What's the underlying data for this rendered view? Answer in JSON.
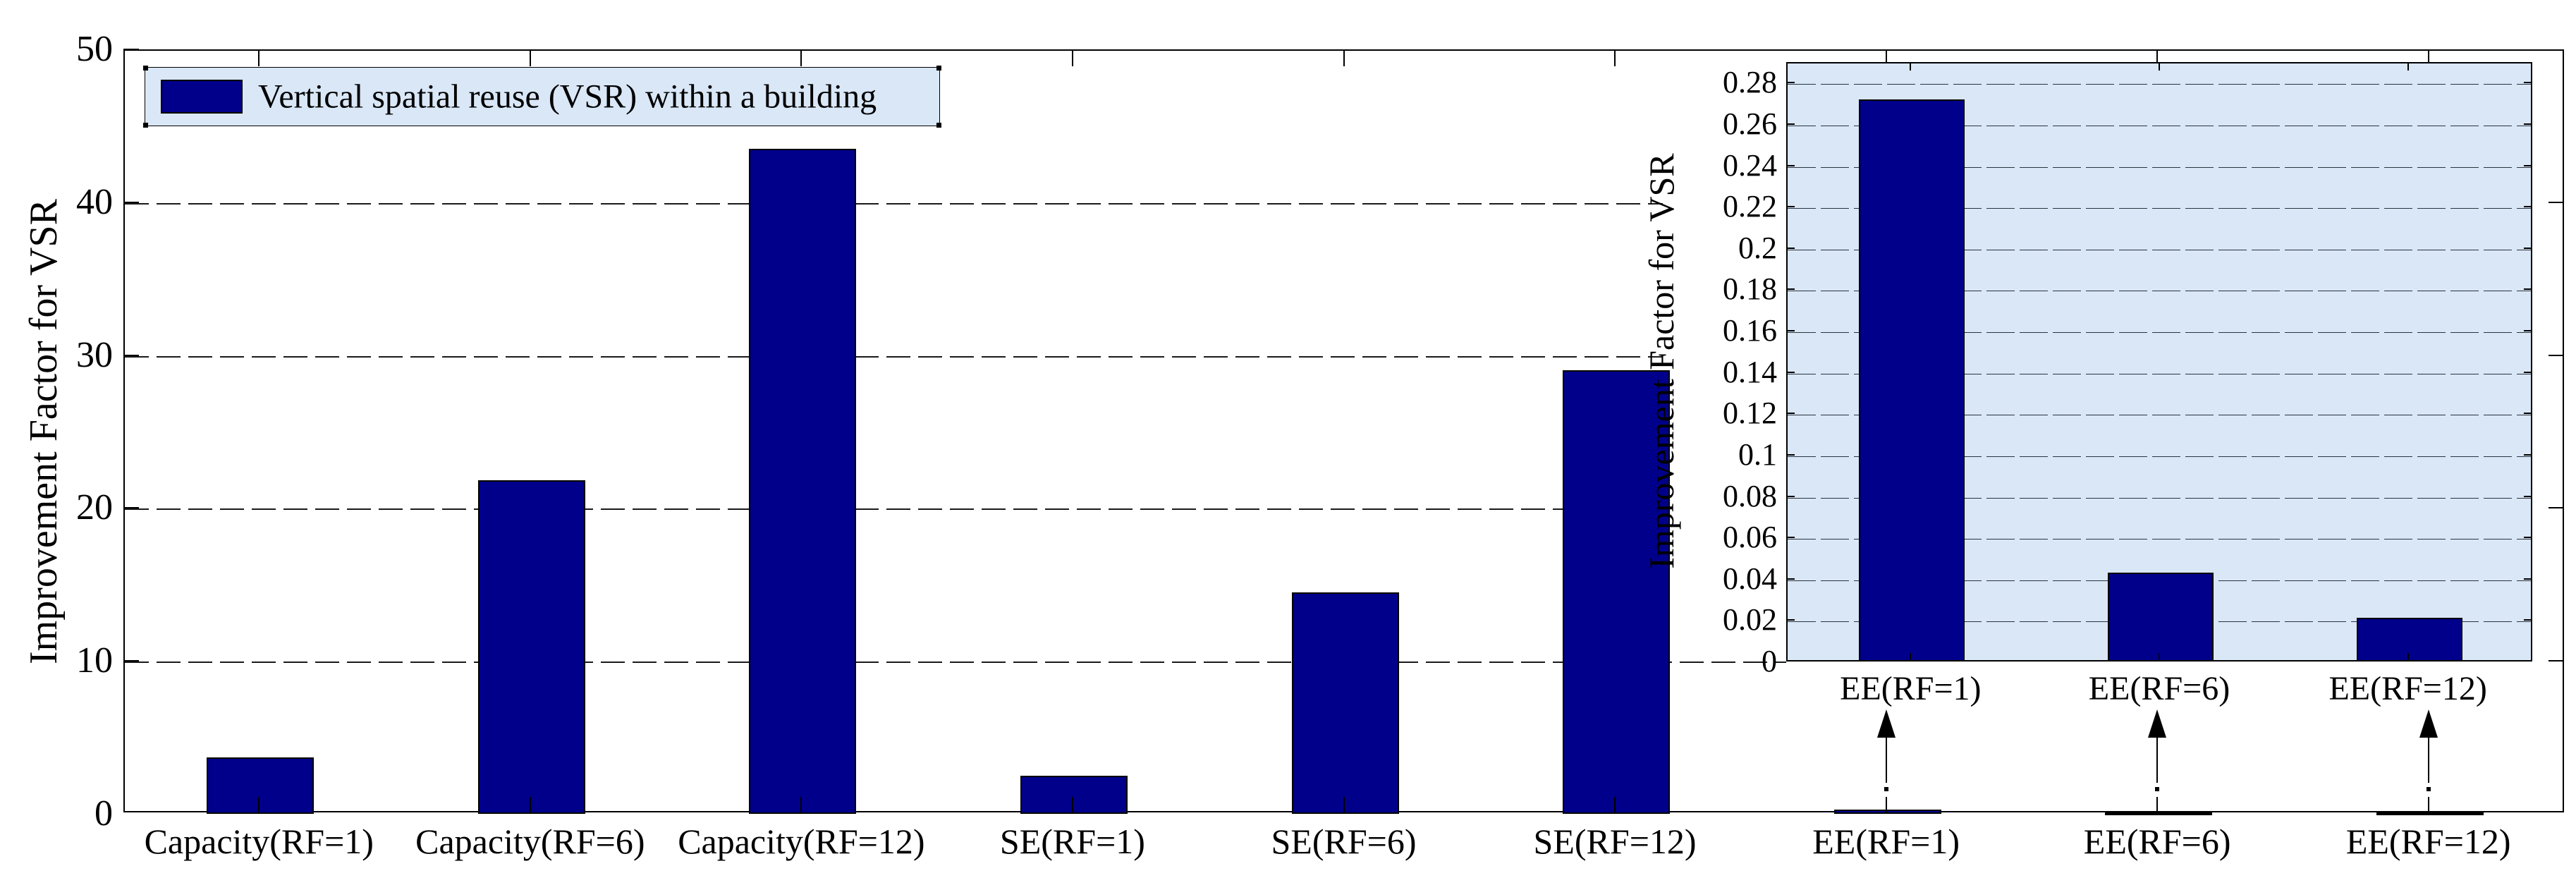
{
  "figure": {
    "legend": {
      "label": "Vertical spatial reuse (VSR) within a building",
      "swatch_color": "#00008B",
      "background_color": "#d9e7f7",
      "position": "top-left"
    },
    "colors": {
      "bar_fill": "#00008B",
      "bar_border": "#000000",
      "inset_background": "#d9e7f7",
      "axis": "#000000",
      "figure_background": "#ffffff"
    }
  },
  "chart_data": [
    {
      "id": "main",
      "type": "bar",
      "title": "",
      "xlabel": "",
      "ylabel": "Improvement Factor for VSR",
      "categories": [
        "Capacity(RF=1)",
        "Capacity(RF=6)",
        "Capacity(RF=12)",
        "SE(RF=1)",
        "SE(RF=6)",
        "SE(RF=12)",
        "EE(RF=1)",
        "EE(RF=6)",
        "EE(RF=12)"
      ],
      "values": [
        3.7,
        21.8,
        43.5,
        2.5,
        14.5,
        29.0,
        0.272,
        0.043,
        0.021
      ],
      "ylim": [
        0,
        50
      ],
      "yticks": [
        0,
        10,
        20,
        30,
        40,
        50
      ],
      "ytick_labels": [
        "0",
        "10",
        "20",
        "30",
        "40",
        "50"
      ],
      "grid": true,
      "legend_entries": [
        "Vertical spatial reuse (VSR) within a building"
      ],
      "legend_position": "top-left"
    },
    {
      "id": "inset",
      "type": "bar",
      "title": "",
      "xlabel": "",
      "ylabel": "Improvement Factor for VSR",
      "categories": [
        "EE(RF=1)",
        "EE(RF=6)",
        "EE(RF=12)"
      ],
      "values": [
        0.272,
        0.043,
        0.021
      ],
      "ylim": [
        0,
        0.29
      ],
      "yticks": [
        0,
        0.02,
        0.04,
        0.06,
        0.08,
        0.1,
        0.12,
        0.14,
        0.16,
        0.18,
        0.2,
        0.22,
        0.24,
        0.26,
        0.28
      ],
      "ytick_labels": [
        "0",
        "0.02",
        "0.04",
        "0.06",
        "0.08",
        "0.1",
        "0.12",
        "0.14",
        "0.16",
        "0.18",
        "0.2",
        "0.22",
        "0.24",
        "0.26",
        "0.28"
      ],
      "grid": true,
      "plot_background": "#d9e7f7"
    }
  ],
  "annotations": {
    "arrows": [
      {
        "from_category": "EE(RF=1)",
        "points_to": "inset label EE(RF=1)",
        "direction": "up"
      },
      {
        "from_category": "EE(RF=6)",
        "points_to": "inset label EE(RF=6)",
        "direction": "up"
      },
      {
        "from_category": "EE(RF=12)",
        "points_to": "inset label EE(RF=12)",
        "direction": "up"
      }
    ]
  }
}
